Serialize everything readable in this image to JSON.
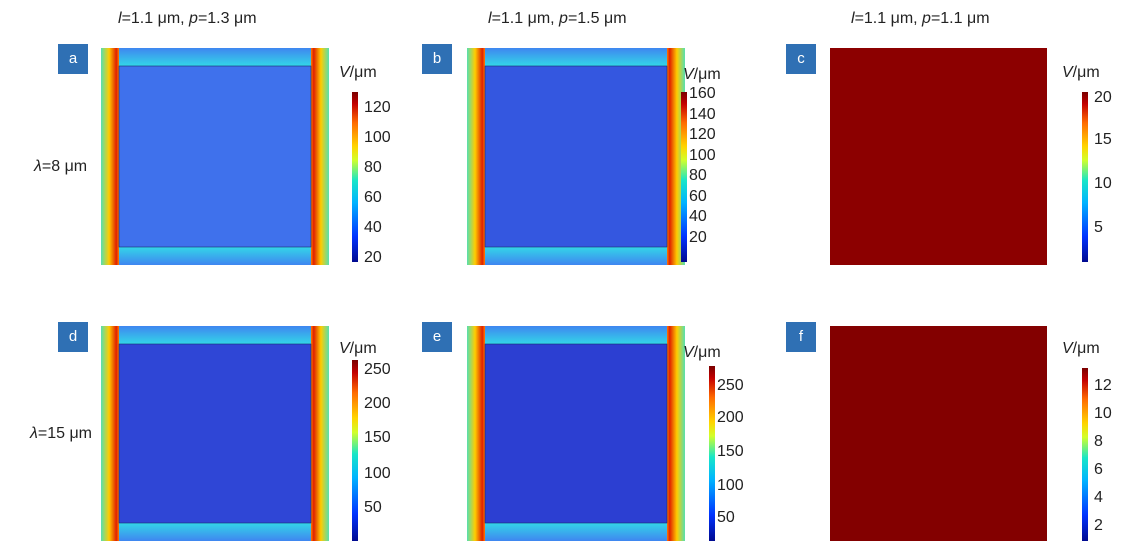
{
  "columns": [
    {
      "l_sym": "l",
      "l_val": "=1.1 μm, ",
      "p_sym": "p",
      "p_val": "=1.3 μm"
    },
    {
      "l_sym": "l",
      "l_val": "=1.1 μm, ",
      "p_sym": "p",
      "p_val": "=1.5 μm"
    },
    {
      "l_sym": "l",
      "l_val": "=1.1 μm, ",
      "p_sym": "p",
      "p_val": "=1.1 μm"
    }
  ],
  "rows": [
    {
      "sym": "λ",
      "val": "=8 μm"
    },
    {
      "sym": "λ",
      "val": "=15 μm"
    }
  ],
  "panels": [
    {
      "letter": "a",
      "cb_sym": "V",
      "cb_unit": "/μm",
      "ticks": [
        "120",
        "100",
        "80",
        "60",
        "40",
        "20"
      ],
      "type": "field",
      "interior": "#3f71ec"
    },
    {
      "letter": "b",
      "cb_sym": "V",
      "cb_unit": "/μm",
      "ticks": [
        "160",
        "140",
        "120",
        "100",
        "80",
        "60",
        "40",
        "20"
      ],
      "type": "field",
      "interior": "#3457e0"
    },
    {
      "letter": "c",
      "cb_sym": "V",
      "cb_unit": "/μm",
      "ticks": [
        "20",
        "15",
        "10",
        "5"
      ],
      "type": "solid",
      "interior": "#8c0000"
    },
    {
      "letter": "d",
      "cb_sym": "V",
      "cb_unit": "/μm",
      "ticks": [
        "250",
        "200",
        "150",
        "100",
        "50"
      ],
      "type": "field",
      "interior": "#2f46d6"
    },
    {
      "letter": "e",
      "cb_sym": "V",
      "cb_unit": "/μm",
      "ticks": [
        "250",
        "200",
        "150",
        "100",
        "50"
      ],
      "type": "field",
      "interior": "#2c3fd2"
    },
    {
      "letter": "f",
      "cb_sym": "V",
      "cb_unit": "/μm",
      "ticks": [
        "12",
        "10",
        "8",
        "6",
        "4",
        "2"
      ],
      "type": "solid",
      "interior": "#830000"
    }
  ]
}
